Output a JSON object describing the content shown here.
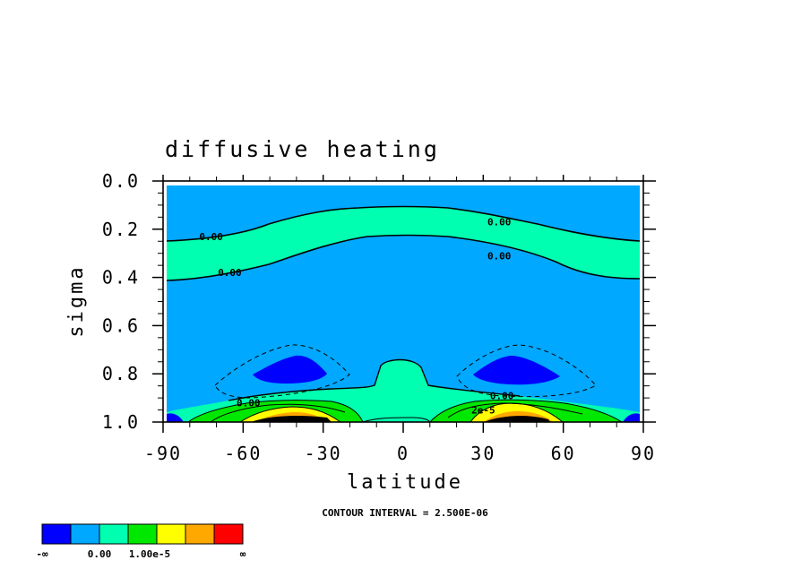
{
  "chart_data": {
    "type": "contour",
    "title": "diffusive heating",
    "xlabel": "latitude",
    "ylabel": "sigma",
    "xlim": [
      -90,
      90
    ],
    "ylim": [
      1.0,
      0.0
    ],
    "x_ticks": [
      "-90",
      "-60",
      "-30",
      "0",
      "30",
      "60",
      "90"
    ],
    "y_ticks": [
      "0.0",
      "0.2",
      "0.4",
      "0.6",
      "0.8",
      "1.0"
    ],
    "contour_labels": [
      {
        "text": "0.00",
        "lat": -72,
        "sigma": 0.23
      },
      {
        "text": "0.00",
        "lat": -65,
        "sigma": 0.38
      },
      {
        "text": "0.00",
        "lat": 36,
        "sigma": 0.17
      },
      {
        "text": "0.00",
        "lat": 36,
        "sigma": 0.31
      },
      {
        "text": "0.00",
        "lat": -58,
        "sigma": 0.92
      },
      {
        "text": "0.00",
        "lat": 37,
        "sigma": 0.89
      },
      {
        "text": "2e-5",
        "lat": 30,
        "sigma": 0.95
      }
    ],
    "contour_interval_note": "CONTOUR INTERVAL = 2.500E-06",
    "colorbar": {
      "colors": [
        "#0000ff",
        "#00a8ff",
        "#00ffb0",
        "#00e800",
        "#ffff00",
        "#ffa800",
        "#ff0000"
      ],
      "labels": [
        "-∞",
        "0.00",
        "1.00e-5",
        "∞"
      ]
    }
  }
}
